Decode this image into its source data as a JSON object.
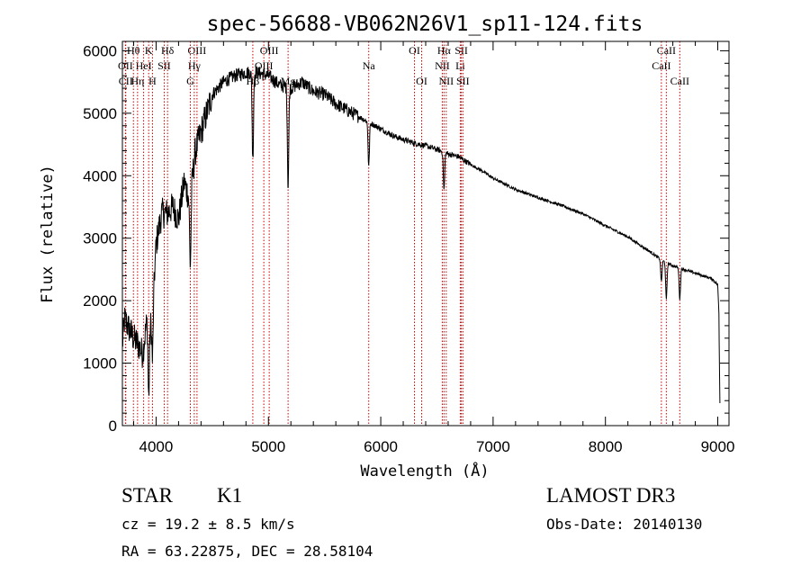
{
  "chart_data": {
    "type": "line",
    "title": "spec-56688-VB062N26V1_sp11-124.fits",
    "xlabel": "Wavelength (Å)",
    "ylabel": "Flux (relative)",
    "xlim": [
      3700,
      9100
    ],
    "ylim": [
      0,
      6150
    ],
    "x_ticks": [
      4000,
      5000,
      6000,
      7000,
      8000,
      9000
    ],
    "y_ticks": [
      0,
      1000,
      2000,
      3000,
      4000,
      5000,
      6000
    ],
    "line_color": "#000000",
    "marker_color": "#cc0000",
    "spectral_lines": [
      {
        "name": "Hθ",
        "wavelength": 3798,
        "row": 1
      },
      {
        "name": "OII",
        "wavelength": 3727,
        "row": 2
      },
      {
        "name": "CII",
        "wavelength": 3730,
        "row": 3
      },
      {
        "name": "HeI",
        "wavelength": 3889,
        "row": 2
      },
      {
        "name": "Hη",
        "wavelength": 3835,
        "row": 3
      },
      {
        "name": "K",
        "wavelength": 3934,
        "row": 1
      },
      {
        "name": "H",
        "wavelength": 3968,
        "row": 3
      },
      {
        "name": "SII",
        "wavelength": 4072,
        "row": 2
      },
      {
        "name": "Hδ",
        "wavelength": 4102,
        "row": 1
      },
      {
        "name": "OIII",
        "wavelength": 4364,
        "row": 1
      },
      {
        "name": "Hγ",
        "wavelength": 4340,
        "row": 2
      },
      {
        "name": "G",
        "wavelength": 4305,
        "row": 3
      },
      {
        "name": "Hβ",
        "wavelength": 4861,
        "row": 3
      },
      {
        "name": "OIII",
        "wavelength": 5007,
        "row": 1
      },
      {
        "name": "OIII",
        "wavelength": 4959,
        "row": 2
      },
      {
        "name": "Mg",
        "wavelength": 5175,
        "row": 3
      },
      {
        "name": "Na",
        "wavelength": 5893,
        "row": 2
      },
      {
        "name": "OI",
        "wavelength": 6300,
        "row": 1
      },
      {
        "name": "OI",
        "wavelength": 6364,
        "row": 3
      },
      {
        "name": "Hα",
        "wavelength": 6563,
        "row": 1
      },
      {
        "name": "NII",
        "wavelength": 6548,
        "row": 2
      },
      {
        "name": "NII",
        "wavelength": 6583,
        "row": 3
      },
      {
        "name": "SII",
        "wavelength": 6717,
        "row": 1
      },
      {
        "name": "Li",
        "wavelength": 6708,
        "row": 2
      },
      {
        "name": "SII",
        "wavelength": 6731,
        "row": 3
      },
      {
        "name": "CaII",
        "wavelength": 8542,
        "row": 1
      },
      {
        "name": "CaII",
        "wavelength": 8498,
        "row": 2
      },
      {
        "name": "CaII",
        "wavelength": 8662,
        "row": 3
      }
    ],
    "continuum": [
      [
        3700,
        1300
      ],
      [
        3720,
        1700
      ],
      [
        3760,
        1550
      ],
      [
        3800,
        1400
      ],
      [
        3840,
        1300
      ],
      [
        3880,
        1150
      ],
      [
        3920,
        1700
      ],
      [
        3950,
        1600
      ],
      [
        3980,
        2200
      ],
      [
        4000,
        2900
      ],
      [
        4050,
        3400
      ],
      [
        4100,
        3400
      ],
      [
        4150,
        3500
      ],
      [
        4200,
        3300
      ],
      [
        4250,
        3900
      ],
      [
        4300,
        3600
      ],
      [
        4350,
        4400
      ],
      [
        4400,
        4700
      ],
      [
        4450,
        5000
      ],
      [
        4500,
        5300
      ],
      [
        4600,
        5500
      ],
      [
        4700,
        5600
      ],
      [
        4800,
        5650
      ],
      [
        4900,
        5650
      ],
      [
        5000,
        5600
      ],
      [
        5100,
        5450
      ],
      [
        5200,
        5400
      ],
      [
        5300,
        5500
      ],
      [
        5400,
        5350
      ],
      [
        5500,
        5300
      ],
      [
        5600,
        5150
      ],
      [
        5700,
        5050
      ],
      [
        5800,
        4950
      ],
      [
        5900,
        4850
      ],
      [
        6000,
        4750
      ],
      [
        6100,
        4650
      ],
      [
        6200,
        4580
      ],
      [
        6300,
        4520
      ],
      [
        6400,
        4480
      ],
      [
        6500,
        4420
      ],
      [
        6600,
        4350
      ],
      [
        6700,
        4300
      ],
      [
        6800,
        4180
      ],
      [
        6900,
        4080
      ],
      [
        7000,
        3960
      ],
      [
        7200,
        3780
      ],
      [
        7400,
        3650
      ],
      [
        7600,
        3530
      ],
      [
        7800,
        3390
      ],
      [
        8000,
        3200
      ],
      [
        8200,
        3020
      ],
      [
        8400,
        2780
      ],
      [
        8500,
        2650
      ],
      [
        8600,
        2560
      ],
      [
        8800,
        2440
      ],
      [
        8950,
        2350
      ],
      [
        9000,
        2250
      ],
      [
        9010,
        1800
      ],
      [
        9020,
        200
      ]
    ],
    "absorption_features": [
      {
        "wavelength": 3934,
        "depth": 1200
      },
      {
        "wavelength": 3968,
        "depth": 900
      },
      {
        "wavelength": 4305,
        "depth": 1100
      },
      {
        "wavelength": 4861,
        "depth": 1400
      },
      {
        "wavelength": 5175,
        "depth": 1600
      },
      {
        "wavelength": 5893,
        "depth": 700
      },
      {
        "wavelength": 6563,
        "depth": 600
      },
      {
        "wavelength": 8498,
        "depth": 350
      },
      {
        "wavelength": 8542,
        "depth": 600
      },
      {
        "wavelength": 8662,
        "depth": 500
      }
    ]
  },
  "info": {
    "class": "STAR",
    "subclass": "K1",
    "source": "LAMOST DR3",
    "cz": "cz = 19.2 ± 8.5 km/s",
    "obs_date": "Obs-Date: 20140130",
    "coords": "RA =  63.22875, DEC =  28.58104"
  }
}
